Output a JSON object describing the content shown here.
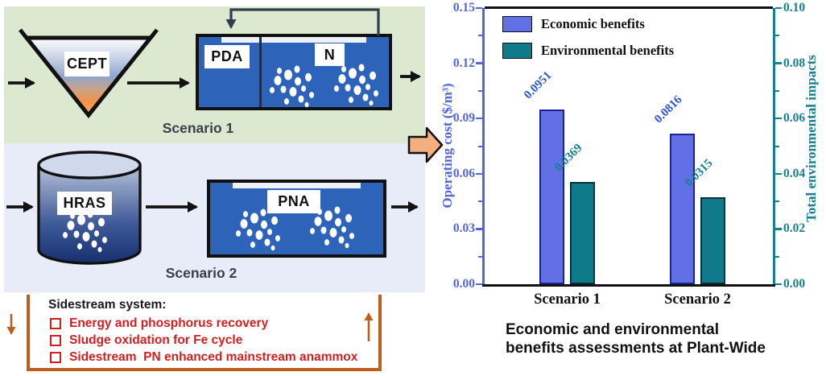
{
  "diagram": {
    "scenario1": {
      "label": "Scenario 1",
      "cept": "CEPT",
      "pda": "PDA",
      "n": "N"
    },
    "scenario2": {
      "label": "Scenario 2",
      "hras": "HRAS",
      "pna": "PNA"
    },
    "sidestream": {
      "title": "Sidestream system:",
      "items": [
        "Energy and phosphorus recovery",
        "Sludge oxidation for Fe cycle",
        "Sidestream  PN enhanced mainstream anammox"
      ]
    }
  },
  "chart_data": {
    "type": "bar",
    "categories": [
      "Scenario 1",
      "Scenario 2"
    ],
    "series": [
      {
        "name": "Economic benefits",
        "axis": "left",
        "values": [
          0.0951,
          0.0816
        ],
        "value_labels": [
          "0.0951",
          "0.0816"
        ],
        "fill": "#6170e4",
        "border": "#1a2290",
        "label_color": "#2e55cc"
      },
      {
        "name": "Environmental benefits",
        "axis": "right",
        "values": [
          0.0369,
          0.0315
        ],
        "value_labels": [
          "0.0369",
          "0.0315"
        ],
        "fill": "#0e7a8a",
        "border": "#082f36",
        "label_color": "#13808f"
      }
    ],
    "left_axis": {
      "label": "Operating cost ($/m³)",
      "range": [
        0,
        0.15
      ],
      "ticks": [
        "0.00",
        "0.03",
        "0.06",
        "0.09",
        "0.12",
        "0.15"
      ],
      "color": "#5265dc"
    },
    "right_axis": {
      "label": "Total environmental impacts",
      "range": [
        0,
        0.1
      ],
      "ticks": [
        "0.00",
        "0.02",
        "0.04",
        "0.06",
        "0.08",
        "0.10"
      ],
      "color": "#157f90"
    },
    "legend_position": "top-left",
    "grid": false
  },
  "caption": {
    "line1": "Economic and environmental",
    "line2": "benefits assessments at Plant-Wide"
  },
  "colors": {
    "panel_scenario1_bg": "#dde8d1",
    "panel_scenario2_bg": "#e7ecf8",
    "tank_fill": "#2d63b8",
    "sidestream_border": "#bf5f1e",
    "sidestream_text": "#d31f1f",
    "block_arrow_fill": "#f6ae7e",
    "economic_bar": "#6170e4",
    "environmental_bar": "#0e7a8a",
    "left_axis": "#5265dc",
    "right_axis": "#157f90"
  }
}
